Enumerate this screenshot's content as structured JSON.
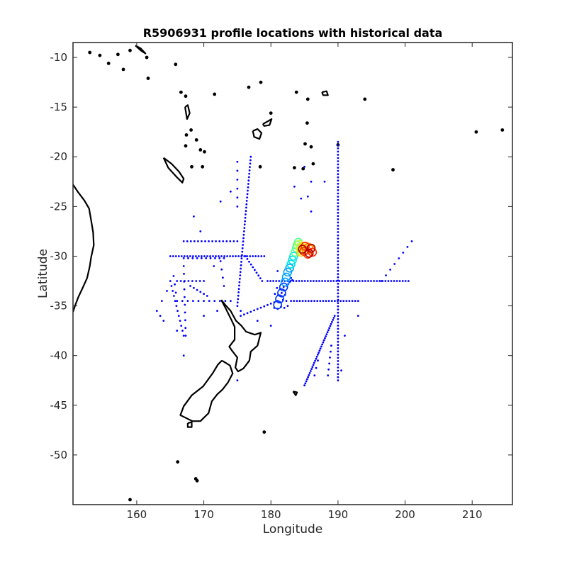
{
  "chart_data": {
    "type": "scatter",
    "title": "R5906931 profile locations with historical data",
    "xlabel": "Longitude",
    "ylabel": "Latitude",
    "xlim": [
      150.5,
      216
    ],
    "ylim": [
      -55,
      -8.5
    ],
    "xticks": [
      160,
      170,
      180,
      190,
      200,
      210
    ],
    "yticks": [
      -10,
      -15,
      -20,
      -25,
      -30,
      -35,
      -40,
      -45,
      -50
    ],
    "grid": false,
    "legend": "none",
    "historical_points_color": "#0000ff",
    "coastline_color": "#000000",
    "colormap": [
      "#0033ff",
      "#00a0ff",
      "#00e5e5",
      "#55ff99",
      "#c8ff3c",
      "#ffd400",
      "#ff8a00",
      "#ff2a00",
      "#b00000"
    ],
    "historical_tracks": [
      {
        "type": "line",
        "start": [
          165.0,
          -30.0
        ],
        "end": [
          179.0,
          -30.0
        ],
        "n": 34
      },
      {
        "type": "line",
        "start": [
          179.5,
          -32.5
        ],
        "end": [
          200.5,
          -32.5
        ],
        "n": 50
      },
      {
        "type": "line",
        "start": [
          183.0,
          -34.5
        ],
        "end": [
          193.0,
          -34.5
        ],
        "n": 24
      },
      {
        "type": "line",
        "start": [
          166.0,
          -34.5
        ],
        "end": [
          174.0,
          -34.5
        ],
        "n": 11
      },
      {
        "type": "line",
        "start": [
          166.0,
          -32.5
        ],
        "end": [
          170.0,
          -32.5
        ],
        "n": 8
      },
      {
        "type": "line",
        "start": [
          167.0,
          -28.5
        ],
        "end": [
          175.0,
          -28.5
        ],
        "n": 16
      },
      {
        "type": "line",
        "start": [
          167.0,
          -30.2
        ],
        "end": [
          173.0,
          -30.2
        ],
        "n": 10
      },
      {
        "type": "line",
        "start": [
          176.2,
          -30.0
        ],
        "end": [
          178.7,
          -32.5
        ],
        "n": 10
      },
      {
        "type": "line",
        "start": [
          190.0,
          -18.5
        ],
        "end": [
          190.0,
          -42.5
        ],
        "n": 75
      },
      {
        "type": "line",
        "start": [
          177.0,
          -20.0
        ],
        "end": [
          175.0,
          -35.0
        ],
        "n": 45
      },
      {
        "type": "line",
        "start": [
          175.0,
          -20.5
        ],
        "end": [
          175.0,
          -25.0
        ],
        "n": 6
      },
      {
        "type": "line",
        "start": [
          175.5,
          -36.0
        ],
        "end": [
          181.0,
          -34.5
        ],
        "n": 12
      },
      {
        "type": "line",
        "start": [
          189.5,
          -36.0
        ],
        "end": [
          185.0,
          -43.0
        ],
        "n": 35
      },
      {
        "type": "line",
        "start": [
          186.0,
          -22.5
        ],
        "end": [
          188.0,
          -22.5
        ],
        "n": 2
      },
      {
        "type": "line",
        "start": [
          196.5,
          -32.5
        ],
        "end": [
          201.0,
          -28.5
        ],
        "n": 8
      },
      {
        "type": "line",
        "start": [
          165.0,
          -32.5
        ],
        "end": [
          167.0,
          -38.0
        ],
        "n": 12
      },
      {
        "type": "line",
        "start": [
          164.5,
          -33.5
        ],
        "end": [
          163.0,
          -35.5
        ],
        "n": 3
      },
      {
        "type": "line",
        "start": [
          172.5,
          -30.5
        ],
        "end": [
          173.0,
          -33.0
        ],
        "n": 4
      },
      {
        "type": "line",
        "start": [
          167.0,
          -31.0
        ],
        "end": [
          167.3,
          -38.0
        ],
        "n": 10
      },
      {
        "type": "line",
        "start": [
          168.0,
          -33.0
        ],
        "end": [
          170.5,
          -34.0
        ],
        "n": 6
      },
      {
        "type": "line",
        "start": [
          165.5,
          -32.0
        ],
        "end": [
          166.0,
          -34.5
        ],
        "n": 4
      },
      {
        "type": "line",
        "start": [
          189.0,
          -39.0
        ],
        "end": [
          188.5,
          -42.0
        ],
        "n": 6
      },
      {
        "type": "line",
        "start": [
          187.0,
          -40.5
        ],
        "end": [
          186.5,
          -42.0
        ],
        "n": 3
      },
      {
        "type": "points",
        "xs": [
          174.0,
          172.5,
          168.5,
          163.5,
          164.0,
          166.0,
          167.0,
          170.0,
          172.0,
          171.5,
          169.5,
          175.5,
          185.0,
          185.5,
          191.0,
          193.0,
          190.5,
          180.0,
          178.0,
          183.5,
          184.5,
          186.0,
          181.0,
          175.0
        ],
        "ys": [
          -23.5,
          -24.5,
          -26.0,
          -36.0,
          -36.5,
          -37.5,
          -40.0,
          -36.0,
          -35.5,
          -31.0,
          -27.5,
          -35.5,
          -21.0,
          -24.0,
          -38.0,
          -36.0,
          -41.5,
          -37.0,
          -36.5,
          -23.0,
          -24.2,
          -25.5,
          -31.5,
          -42.5
        ]
      },
      {
        "type": "points",
        "xs": [
          180.5,
          181.0,
          181.5,
          182.0,
          182.5,
          180.8,
          181.3,
          181.8,
          182.3,
          180.6,
          181.1,
          181.6,
          182.1,
          180.9,
          181.4,
          181.9,
          182.4,
          182.8,
          183.2,
          182.6,
          183.0
        ],
        "ys": [
          -35.2,
          -35.3,
          -35.1,
          -35.2,
          -35.0,
          -34.5,
          -34.6,
          -34.4,
          -34.5,
          -33.8,
          -33.9,
          -33.7,
          -33.9,
          -33.2,
          -33.3,
          -33.1,
          -33.0,
          -32.6,
          -32.4,
          -32.8,
          -32.2
        ]
      }
    ],
    "float_path": {
      "xs": [
        181.0,
        181.3,
        181.6,
        181.9,
        182.1,
        182.3,
        182.5,
        182.8,
        183.0,
        183.2,
        183.4,
        183.6,
        183.8,
        183.9,
        184.1,
        184.2,
        184.3,
        184.4,
        184.5,
        184.6,
        184.8,
        185.0,
        185.3,
        185.6,
        185.9,
        186.2,
        185.5,
        184.9,
        185.1,
        185.7,
        186.0,
        184.7
      ],
      "ys": [
        -34.9,
        -34.3,
        -33.7,
        -33.1,
        -32.6,
        -32.1,
        -31.6,
        -31.2,
        -30.8,
        -30.4,
        -30.0,
        -29.6,
        -29.2,
        -28.9,
        -28.6,
        -28.8,
        -29.1,
        -29.4,
        -29.6,
        -29.3,
        -29.0,
        -29.2,
        -29.4,
        -29.1,
        -29.3,
        -29.6,
        -29.8,
        -29.5,
        -29.0,
        -29.7,
        -29.2,
        -29.3
      ]
    }
  }
}
